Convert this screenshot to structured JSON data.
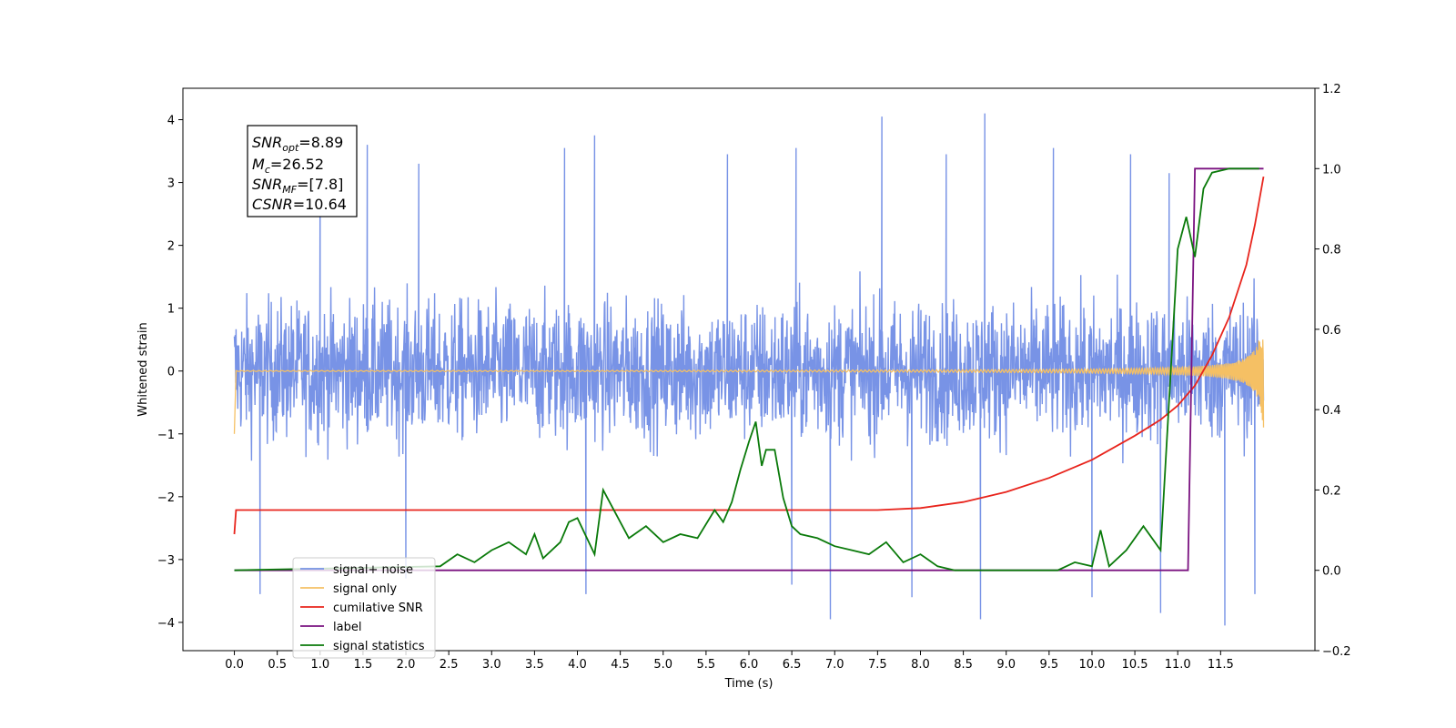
{
  "chart_data": {
    "type": "line",
    "xlabel": "Time (s)",
    "ylabel": "Whitened strain",
    "xlim": [
      -0.6,
      12.6
    ],
    "ylim": [
      -4.45,
      4.5
    ],
    "y2lim": [
      -0.2,
      1.2
    ],
    "x_ticks": [
      "0.0",
      "0.5",
      "1.0",
      "1.5",
      "2.0",
      "2.5",
      "3.0",
      "3.5",
      "4.0",
      "4.5",
      "5.0",
      "5.5",
      "6.0",
      "6.5",
      "7.0",
      "7.5",
      "8.0",
      "8.5",
      "9.0",
      "9.5",
      "10.0",
      "10.5",
      "11.0",
      "11.5"
    ],
    "y_ticks": [
      "4",
      "3",
      "2",
      "1",
      "0",
      "−1",
      "−2",
      "−3",
      "−4"
    ],
    "y2_ticks": [
      "1.2",
      "1.0",
      "0.8",
      "0.6",
      "0.4",
      "0.2",
      "0.0",
      "−0.2"
    ],
    "grid": false,
    "legend_position": "lower-left",
    "annotation": {
      "snr_opt_label": "SNR",
      "snr_opt_sub": "opt",
      "snr_opt_value": "=8.89",
      "mc_label": "M",
      "mc_sub": "c",
      "mc_value": "=26.52",
      "snr_mf_label": "SNR",
      "snr_mf_sub": "MF",
      "snr_mf_value": "=[7.8]",
      "csnr_label": "CSNR",
      "csnr_value": "=10.64"
    },
    "series": [
      {
        "name": "signal+ noise",
        "color": "#7893e6",
        "axis": "left",
        "kind": "noise",
        "x_range": [
          0.0,
          12.0
        ],
        "amplitude": 1.0,
        "peaks": [
          {
            "x": 1.0,
            "y": 3.55
          },
          {
            "x": 1.55,
            "y": 3.6
          },
          {
            "x": 2.15,
            "y": 3.3
          },
          {
            "x": 3.85,
            "y": 3.55
          },
          {
            "x": 4.2,
            "y": 3.75
          },
          {
            "x": 5.75,
            "y": 3.45
          },
          {
            "x": 6.55,
            "y": 3.55
          },
          {
            "x": 7.55,
            "y": 4.05
          },
          {
            "x": 8.3,
            "y": 3.45
          },
          {
            "x": 8.75,
            "y": 4.1
          },
          {
            "x": 9.55,
            "y": 3.55
          },
          {
            "x": 10.45,
            "y": 3.45
          },
          {
            "x": 10.9,
            "y": 3.15
          },
          {
            "x": 0.3,
            "y": -3.55
          },
          {
            "x": 2.0,
            "y": -3.3
          },
          {
            "x": 4.1,
            "y": -3.55
          },
          {
            "x": 6.5,
            "y": -3.4
          },
          {
            "x": 6.95,
            "y": -3.95
          },
          {
            "x": 7.9,
            "y": -3.6
          },
          {
            "x": 8.7,
            "y": -3.95
          },
          {
            "x": 10.0,
            "y": -3.6
          },
          {
            "x": 10.8,
            "y": -3.85
          },
          {
            "x": 11.55,
            "y": -4.05
          },
          {
            "x": 11.9,
            "y": -3.55
          }
        ]
      },
      {
        "name": "signal only",
        "color": "#f5c064",
        "axis": "left",
        "kind": "chirp",
        "x_range": [
          0.0,
          12.0
        ],
        "chirp_start_amp": 0.0,
        "chirp_end_amp": 0.95
      },
      {
        "name": "cumilative SNR",
        "color": "#e8241c",
        "axis": "right",
        "kind": "line",
        "x": [
          0.0,
          0.02,
          1.0,
          3.0,
          5.0,
          7.0,
          7.5,
          8.0,
          8.5,
          9.0,
          9.5,
          10.0,
          10.5,
          10.8,
          11.0,
          11.2,
          11.4,
          11.6,
          11.8,
          11.9,
          12.0
        ],
        "y": [
          0.09,
          0.15,
          0.15,
          0.15,
          0.15,
          0.15,
          0.15,
          0.155,
          0.17,
          0.195,
          0.23,
          0.275,
          0.335,
          0.375,
          0.41,
          0.46,
          0.535,
          0.63,
          0.76,
          0.86,
          0.98
        ]
      },
      {
        "name": "label",
        "color": "#7a1280",
        "axis": "right",
        "kind": "line",
        "x": [
          0.0,
          11.12,
          11.2,
          12.0
        ],
        "y": [
          0.0,
          0.0,
          1.0,
          1.0
        ]
      },
      {
        "name": "signal statistics",
        "color": "#0a7a0a",
        "axis": "right",
        "kind": "line",
        "x": [
          0.0,
          2.4,
          2.6,
          2.8,
          3.0,
          3.2,
          3.4,
          3.5,
          3.6,
          3.8,
          3.9,
          4.0,
          4.2,
          4.3,
          4.4,
          4.6,
          4.8,
          5.0,
          5.2,
          5.4,
          5.6,
          5.7,
          5.8,
          5.9,
          6.0,
          6.08,
          6.15,
          6.2,
          6.3,
          6.4,
          6.5,
          6.6,
          6.8,
          7.0,
          7.2,
          7.4,
          7.6,
          7.8,
          8.0,
          8.2,
          8.4,
          8.6,
          8.8,
          9.0,
          9.2,
          9.4,
          9.6,
          9.8,
          10.0,
          10.1,
          10.2,
          10.4,
          10.6,
          10.8,
          11.0,
          11.1,
          11.2,
          11.3,
          11.4,
          11.6,
          11.8,
          11.95
        ],
        "y": [
          0.0,
          0.01,
          0.04,
          0.02,
          0.05,
          0.07,
          0.04,
          0.09,
          0.03,
          0.07,
          0.12,
          0.13,
          0.04,
          0.2,
          0.16,
          0.08,
          0.11,
          0.07,
          0.09,
          0.08,
          0.15,
          0.12,
          0.17,
          0.25,
          0.32,
          0.37,
          0.26,
          0.3,
          0.3,
          0.18,
          0.11,
          0.09,
          0.08,
          0.06,
          0.05,
          0.04,
          0.07,
          0.02,
          0.04,
          0.01,
          0.0,
          0.0,
          0.0,
          0.0,
          0.0,
          0.0,
          0.0,
          0.02,
          0.01,
          0.1,
          0.01,
          0.05,
          0.11,
          0.05,
          0.8,
          0.88,
          0.78,
          0.95,
          0.99,
          1.0,
          1.0,
          1.0
        ]
      }
    ]
  }
}
